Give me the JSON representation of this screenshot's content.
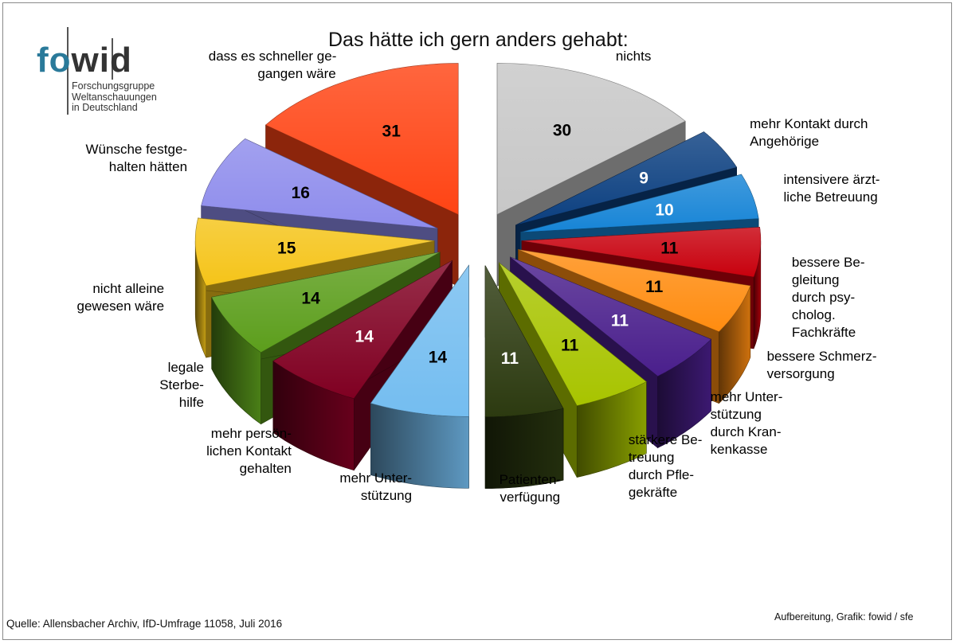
{
  "logo": {
    "fo": "fo",
    "wid": "wid",
    "subtitle": [
      "Forschungsgruppe",
      "Weltanschauungen",
      "in Deutschland"
    ]
  },
  "title": "Das hätte ich gern anders gehabt:",
  "source": "Quelle: Allensbacher Archiv, IfD-Umfrage 11058, Juli 2016",
  "credit": "Aufbereitung, Grafik: fowid / sfe",
  "chart_data": {
    "type": "pie",
    "title": "Das hätte ich gern anders gehabt:",
    "unit": "%",
    "series": [
      {
        "label": "nichts",
        "value": 30,
        "color": "#c7c7c7",
        "value_color": "#000000"
      },
      {
        "label": "mehr Kontakt durch Angehörige",
        "value": 9,
        "color": "#0b3f80",
        "value_color": "#ffffff"
      },
      {
        "label": "intensivere ärztliche Betreuung",
        "value": 10,
        "color": "#1684d6",
        "value_color": "#ffffff"
      },
      {
        "label": "bessere Begleitung durch psycholog. Fachkräfte",
        "value": 11,
        "color": "#c8000d",
        "value_color": "#000000"
      },
      {
        "label": "bessere Schmerzversorgung",
        "value": 11,
        "color": "#ff8c10",
        "value_color": "#000000"
      },
      {
        "label": "mehr Unterstützung durch Krankenkasse",
        "value": 11,
        "color": "#4a1f8c",
        "value_color": "#ffffff"
      },
      {
        "label": "stärkere Betreuung durch Pflegekräfte",
        "value": 11,
        "color": "#a8c400",
        "value_color": "#000000"
      },
      {
        "label": "Patientenverfügung",
        "value": 11,
        "color": "#2c3a10",
        "value_color": "#ffffff"
      },
      {
        "label": "mehr Unterstützung",
        "value": 14,
        "color": "#74bdf0",
        "value_color": "#000000"
      },
      {
        "label": "mehr persönlichen Kontakt gehalten",
        "value": 14,
        "color": "#800022",
        "value_color": "#ffffff"
      },
      {
        "label": "legale Sterbehilfe",
        "value": 14,
        "color": "#5c9e1c",
        "value_color": "#000000"
      },
      {
        "label": "nicht alleine gewesen wäre",
        "value": 15,
        "color": "#f5c419",
        "value_color": "#000000"
      },
      {
        "label": "Wünsche festgehalten hätten",
        "value": 16,
        "color": "#8e8cec",
        "value_color": "#000000"
      },
      {
        "label": "dass es schneller gegangen wäre",
        "value": 31,
        "color": "#ff4414",
        "value_color": "#000000"
      }
    ],
    "label_text": [
      [
        "nichts"
      ],
      [
        "mehr Kontakt durch",
        "Angehörige"
      ],
      [
        "intensivere ärzt-",
        "liche Betreuung"
      ],
      [
        "bessere Be-",
        "gleitung",
        "durch psy-",
        "cholog.",
        "Fachkräfte"
      ],
      [
        "bessere Schmerz-",
        "versorgung"
      ],
      [
        "mehr Unter-",
        "stützung",
        "durch Kran-",
        "kenkasse"
      ],
      [
        "stärkere Be-",
        "treuung",
        "durch Pfle-",
        "gekräfte"
      ],
      [
        "Patienten-",
        "verfügung"
      ],
      [
        "mehr Unter-",
        "stützung"
      ],
      [
        "mehr persön-",
        "lichen Kontakt",
        "gehalten"
      ],
      [
        "legale",
        "Sterbe-",
        "hilfe"
      ],
      [
        "nicht alleine",
        "gewesen wäre"
      ],
      [
        "Wünsche festge-",
        "halten hätten"
      ],
      [
        "dass es schneller ge-",
        "gangen wäre"
      ]
    ]
  }
}
